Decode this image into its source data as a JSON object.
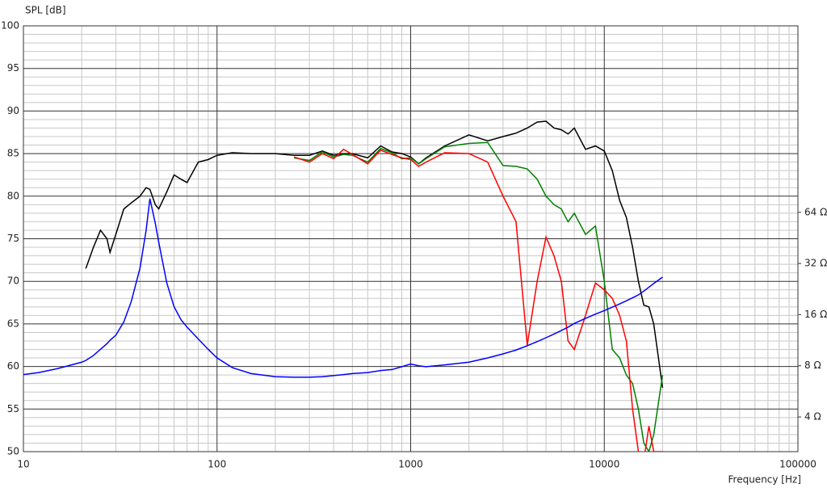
{
  "chart_data": {
    "type": "line",
    "y_label": "SPL [dB]",
    "x_label": "Frequency [Hz]",
    "x_log": true,
    "y2_log": true,
    "grid": true,
    "xlim": [
      10,
      100000
    ],
    "xticks": [
      10,
      100,
      1000,
      10000,
      100000
    ],
    "ylim": [
      50,
      100
    ],
    "yticks": [
      50,
      55,
      60,
      65,
      70,
      75,
      80,
      85,
      90,
      95,
      100
    ],
    "y2lim": [
      2.5,
      800
    ],
    "y2ticks": [
      {
        "value": 4,
        "label": "4 Ω"
      },
      {
        "value": 8,
        "label": "8 Ω"
      },
      {
        "value": 16,
        "label": "16 Ω"
      },
      {
        "value": 32,
        "label": "32 Ω"
      },
      {
        "value": 64,
        "label": "64 Ω"
      }
    ],
    "x": [
      10,
      12,
      15,
      20,
      21,
      23,
      25,
      27,
      28,
      30,
      33,
      36,
      40,
      43,
      45,
      48,
      50,
      55,
      60,
      65,
      70,
      80,
      90,
      100,
      120,
      150,
      200,
      250,
      300,
      350,
      400,
      450,
      500,
      600,
      700,
      800,
      900,
      1000,
      1100,
      1200,
      1500,
      2000,
      2500,
      3000,
      3500,
      4000,
      4500,
      5000,
      5500,
      6000,
      6500,
      7000,
      8000,
      9000,
      10000,
      11000,
      12000,
      13000,
      14000,
      15000,
      16000,
      17000,
      18000,
      20000
    ],
    "series": [
      {
        "color": "#000000",
        "values": [
          null,
          null,
          null,
          null,
          71.5,
          74,
          76,
          75,
          73.4,
          75.5,
          78.5,
          79.2,
          80,
          81,
          80.8,
          79,
          78.5,
          80.5,
          82.5,
          82,
          81.6,
          84,
          84.3,
          84.8,
          85.1,
          85,
          85,
          84.8,
          84.8,
          85.3,
          84.8,
          85,
          85,
          84.5,
          85.9,
          85.2,
          85,
          84.6,
          83.8,
          84.5,
          85.9,
          87.2,
          86.5,
          87,
          87.4,
          88,
          88.7,
          88.8,
          88,
          87.8,
          87.3,
          88,
          85.5,
          85.9,
          85.3,
          83,
          79.5,
          77.5,
          74,
          70,
          67.2,
          67,
          65,
          57.5
        ]
      },
      {
        "color": "#008000",
        "values": [
          null,
          null,
          null,
          null,
          null,
          null,
          null,
          null,
          null,
          null,
          null,
          null,
          null,
          null,
          null,
          null,
          null,
          null,
          null,
          null,
          null,
          null,
          null,
          null,
          null,
          null,
          null,
          84.5,
          84.2,
          85.2,
          84.6,
          84.9,
          84.8,
          84,
          85.6,
          85.1,
          84.4,
          84.5,
          83.8,
          84.4,
          85.8,
          86.2,
          86.3,
          83.6,
          83.5,
          83.2,
          82,
          80,
          79,
          78.5,
          77,
          78,
          75.5,
          76.5,
          70,
          62,
          61,
          59,
          58,
          55,
          51,
          50,
          52,
          59
        ]
      },
      {
        "color": "#ff0000",
        "values": [
          null,
          null,
          null,
          null,
          null,
          null,
          null,
          null,
          null,
          null,
          null,
          null,
          null,
          null,
          null,
          null,
          null,
          null,
          null,
          null,
          null,
          null,
          null,
          null,
          null,
          null,
          null,
          84.6,
          84,
          85,
          84.4,
          85.5,
          84.9,
          83.8,
          85.4,
          84.9,
          84.5,
          84.3,
          83.5,
          84,
          85.1,
          85,
          84,
          80,
          77,
          62.5,
          70,
          75.2,
          73,
          70,
          63,
          62,
          66,
          69.8,
          69,
          68,
          66,
          63,
          55,
          50,
          49,
          53,
          50,
          50
        ]
      },
      {
        "color": "#0000ff",
        "axis": "y2",
        "values": [
          7.1,
          7.3,
          7.7,
          8.4,
          8.6,
          9.2,
          10,
          10.8,
          11.3,
          12.1,
          14.5,
          19,
          30,
          50,
          77,
          55,
          42.6,
          24.6,
          17.8,
          15,
          13.5,
          11.5,
          10,
          8.9,
          7.8,
          7.2,
          6.9,
          6.85,
          6.85,
          6.9,
          7,
          7.1,
          7.2,
          7.3,
          7.5,
          7.6,
          7.9,
          8.2,
          8,
          7.9,
          8.1,
          8.4,
          8.9,
          9.4,
          9.9,
          10.5,
          11.1,
          11.7,
          12.3,
          12.9,
          13.5,
          14.2,
          15.2,
          16.1,
          16.9,
          17.7,
          18.5,
          19.3,
          20.1,
          20.9,
          22,
          23.2,
          24.4,
          26.6
        ]
      }
    ]
  }
}
